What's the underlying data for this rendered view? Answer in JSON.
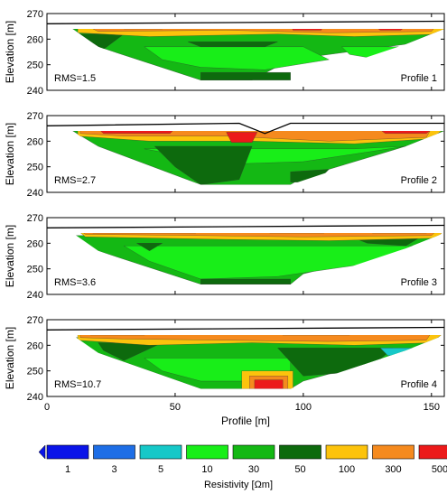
{
  "chart_data": {
    "type": "heatmap",
    "shared_xlabel": "Profile [m]",
    "xlim": [
      0,
      155
    ],
    "x_ticks": [
      0,
      50,
      100,
      150
    ],
    "colorbar": {
      "label": "Resistivity [Ωm]",
      "classes": [
        {
          "value": "1",
          "color": "#0a14e8"
        },
        {
          "value": "3",
          "color": "#1e6ee6"
        },
        {
          "value": "5",
          "color": "#16c8c8"
        },
        {
          "value": "10",
          "color": "#18ee18"
        },
        {
          "value": "30",
          "color": "#14b814"
        },
        {
          "value": "50",
          "color": "#0d6a0d"
        },
        {
          "value": "100",
          "color": "#fcc30c"
        },
        {
          "value": "300",
          "color": "#f58a1e"
        },
        {
          "value": "500",
          "color": "#ec1a1a"
        }
      ],
      "under_color": "#0a14e8",
      "over_color": "#ec1a1a"
    },
    "panels": [
      {
        "ylabel": "Elevation [m]",
        "ylim": [
          240,
          270
        ],
        "y_ticks": [
          240,
          250,
          260,
          270
        ],
        "rms": "RMS=1.5",
        "profile": "Profile 1",
        "surface": [
          [
            0,
            266
          ],
          [
            155,
            267
          ]
        ]
      },
      {
        "ylabel": "Elevation [m]",
        "ylim": [
          240,
          270
        ],
        "y_ticks": [
          240,
          250,
          260,
          270
        ],
        "rms": "RMS=2.7",
        "profile": "Profile 2",
        "surface": [
          [
            0,
            266
          ],
          [
            75,
            267
          ],
          [
            85,
            263
          ],
          [
            95,
            267
          ],
          [
            155,
            267
          ]
        ]
      },
      {
        "ylabel": "Elevation [m]",
        "ylim": [
          240,
          270
        ],
        "y_ticks": [
          240,
          250,
          260,
          270
        ],
        "rms": "RMS=3.6",
        "profile": "Profile 3",
        "surface": [
          [
            0,
            266
          ],
          [
            155,
            267
          ]
        ]
      },
      {
        "ylabel": "Elevation [m]",
        "ylim": [
          240,
          270
        ],
        "y_ticks": [
          240,
          250,
          260,
          270
        ],
        "rms": "RMS=10.7",
        "profile": "Profile 4",
        "surface": [
          [
            0,
            266
          ],
          [
            155,
            267
          ]
        ]
      }
    ]
  }
}
